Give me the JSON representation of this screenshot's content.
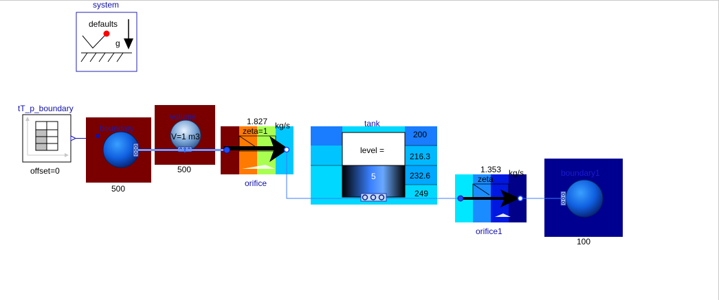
{
  "system": {
    "title": "system",
    "defaults_label": "defaults",
    "g_label": "g"
  },
  "tT_p_boundary": {
    "title": "tT_p_boundary",
    "parameter": "offset=0"
  },
  "boundary": {
    "title": "boundary",
    "value": "500"
  },
  "volume": {
    "title": "volume",
    "inner": "V=1 m3",
    "value": "500"
  },
  "orifice": {
    "title": "orifice",
    "flow": "1.827",
    "unit": "kg/s",
    "zeta": "zeta=1"
  },
  "tank": {
    "title": "tank",
    "level_label": "level =",
    "level_value": "5",
    "readings": [
      "200",
      "216.3",
      "232.6",
      "249"
    ]
  },
  "orifice1": {
    "title": "orifice1",
    "flow": "1.353",
    "unit": "kg/s",
    "zeta": "zeta"
  },
  "boundary1": {
    "title": "boundary1",
    "value": "100"
  },
  "colors": {
    "dark_red": "#7a0000",
    "flow_blue": "#1a5cff",
    "pipe": "#8cb4ff",
    "tank_cyan": "#00d8ff",
    "navy": "#000090"
  }
}
